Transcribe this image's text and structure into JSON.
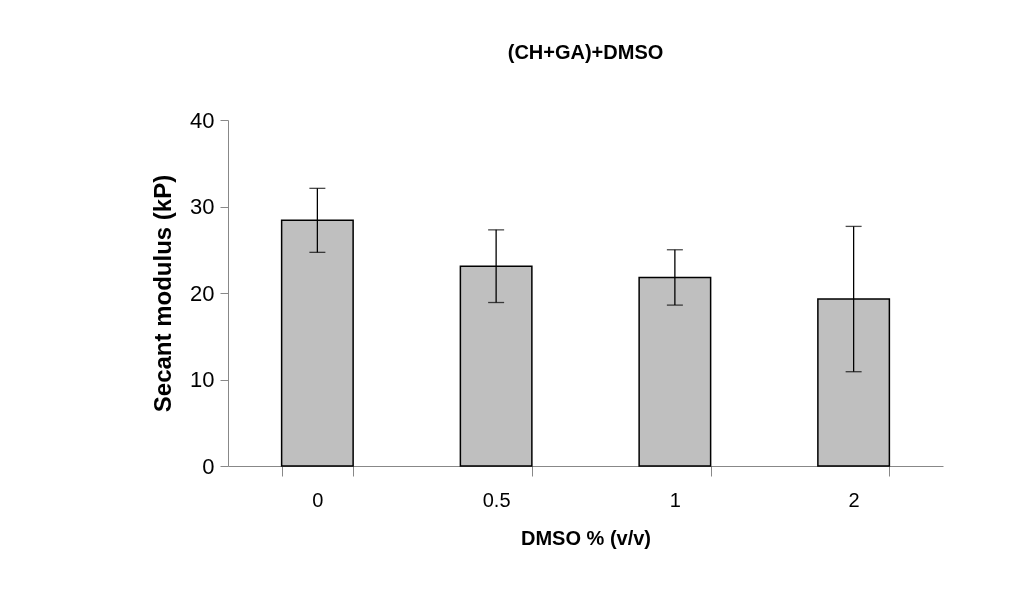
{
  "chart_data": {
    "type": "bar",
    "title": "(CH+GA)+DMSO",
    "xlabel": "DMSO % (v/v)",
    "ylabel": "Secant modulus (kP)",
    "categories": [
      "0",
      "0.5",
      "1",
      "2"
    ],
    "values": [
      28.4,
      23.1,
      21.8,
      19.3
    ],
    "errors": [
      3.7,
      4.2,
      3.2,
      8.4
    ],
    "color": "#bfbfbf",
    "ylim": [
      0,
      40
    ],
    "yticks": [
      0,
      10,
      20,
      30,
      40
    ],
    "grid": false
  }
}
